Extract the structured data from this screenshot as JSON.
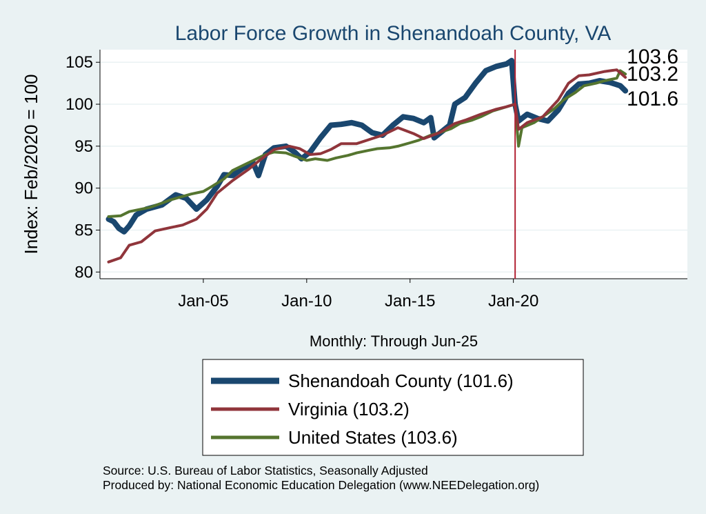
{
  "chart_data": {
    "type": "line",
    "title": "Labor Force Growth in Shenandoah  County, VA",
    "ylabel": "Index: Feb/2020 = 100",
    "xlabel": "Monthly: Through Jun-25",
    "ylim": [
      79.2,
      106.5
    ],
    "xlim": [
      "2000-01",
      "2028-06"
    ],
    "y_ticks": [
      80,
      85,
      90,
      95,
      100,
      105
    ],
    "x_ticks": [
      {
        "date": "2005-01",
        "label": "Jan-05"
      },
      {
        "date": "2010-01",
        "label": "Jan-10"
      },
      {
        "date": "2015-01",
        "label": "Jan-15"
      },
      {
        "date": "2020-01",
        "label": "Jan-20"
      }
    ],
    "reference_line": {
      "date": "2020-02",
      "color": "#b22234"
    },
    "grid": "horizontal",
    "legend_position": "bottom",
    "series": [
      {
        "name": "Shenandoah  County (101.6)",
        "end_label": "101.6",
        "color": "#1a476f",
        "points": [
          [
            "2000-06",
            86.3
          ],
          [
            "2000-09",
            86.0
          ],
          [
            "2000-12",
            85.2
          ],
          [
            "2001-03",
            84.8
          ],
          [
            "2001-06",
            85.5
          ],
          [
            "2001-10",
            86.8
          ],
          [
            "2002-04",
            87.5
          ],
          [
            "2003-01",
            88.0
          ],
          [
            "2003-09",
            89.2
          ],
          [
            "2004-03",
            88.8
          ],
          [
            "2004-09",
            87.5
          ],
          [
            "2005-03",
            88.6
          ],
          [
            "2005-09",
            90.2
          ],
          [
            "2006-01",
            91.6
          ],
          [
            "2006-06",
            91.5
          ],
          [
            "2006-12",
            92.4
          ],
          [
            "2007-06",
            93.0
          ],
          [
            "2007-09",
            91.5
          ],
          [
            "2008-01",
            94.0
          ],
          [
            "2008-06",
            94.8
          ],
          [
            "2009-01",
            95.0
          ],
          [
            "2009-06",
            94.3
          ],
          [
            "2009-10",
            93.5
          ],
          [
            "2010-03",
            94.3
          ],
          [
            "2010-09",
            96.0
          ],
          [
            "2011-03",
            97.5
          ],
          [
            "2011-09",
            97.6
          ],
          [
            "2012-03",
            97.8
          ],
          [
            "2012-09",
            97.5
          ],
          [
            "2013-03",
            96.6
          ],
          [
            "2013-09",
            96.3
          ],
          [
            "2014-03",
            97.5
          ],
          [
            "2014-09",
            98.5
          ],
          [
            "2015-03",
            98.3
          ],
          [
            "2015-09",
            97.8
          ],
          [
            "2016-01",
            98.4
          ],
          [
            "2016-03",
            96.0
          ],
          [
            "2016-06",
            96.5
          ],
          [
            "2016-12",
            97.5
          ],
          [
            "2017-03",
            100.0
          ],
          [
            "2017-09",
            100.8
          ],
          [
            "2018-03",
            102.5
          ],
          [
            "2018-09",
            104.0
          ],
          [
            "2019-03",
            104.5
          ],
          [
            "2019-09",
            104.8
          ],
          [
            "2019-12",
            105.2
          ],
          [
            "2020-02",
            100.0
          ],
          [
            "2020-04",
            98.0
          ],
          [
            "2020-09",
            98.8
          ],
          [
            "2021-03",
            98.3
          ],
          [
            "2021-09",
            98.0
          ],
          [
            "2022-03",
            99.3
          ],
          [
            "2022-09",
            101.3
          ],
          [
            "2023-03",
            102.4
          ],
          [
            "2023-09",
            102.5
          ],
          [
            "2024-03",
            102.8
          ],
          [
            "2024-09",
            102.6
          ],
          [
            "2025-03",
            102.2
          ],
          [
            "2025-06",
            101.6
          ]
        ]
      },
      {
        "name": "Virginia (103.2)",
        "end_label": "103.2",
        "color": "#90353b",
        "points": [
          [
            "2000-06",
            81.2
          ],
          [
            "2001-01",
            81.7
          ],
          [
            "2001-06",
            83.2
          ],
          [
            "2002-01",
            83.6
          ],
          [
            "2002-09",
            84.9
          ],
          [
            "2003-06",
            85.3
          ],
          [
            "2004-01",
            85.6
          ],
          [
            "2004-09",
            86.3
          ],
          [
            "2005-03",
            87.5
          ],
          [
            "2005-09",
            89.4
          ],
          [
            "2006-06",
            90.9
          ],
          [
            "2007-03",
            92.2
          ],
          [
            "2007-09",
            93.2
          ],
          [
            "2008-06",
            94.6
          ],
          [
            "2009-03",
            95.0
          ],
          [
            "2009-09",
            94.7
          ],
          [
            "2010-03",
            94.0
          ],
          [
            "2010-09",
            94.1
          ],
          [
            "2011-03",
            94.6
          ],
          [
            "2011-09",
            95.3
          ],
          [
            "2012-06",
            95.3
          ],
          [
            "2013-03",
            95.9
          ],
          [
            "2013-09",
            96.3
          ],
          [
            "2014-06",
            97.2
          ],
          [
            "2015-03",
            96.5
          ],
          [
            "2015-09",
            95.9
          ],
          [
            "2016-06",
            96.6
          ],
          [
            "2017-03",
            97.7
          ],
          [
            "2017-09",
            98.1
          ],
          [
            "2018-06",
            98.8
          ],
          [
            "2019-03",
            99.4
          ],
          [
            "2019-09",
            99.7
          ],
          [
            "2020-02",
            100.0
          ],
          [
            "2020-04",
            97.0
          ],
          [
            "2020-09",
            97.8
          ],
          [
            "2021-06",
            98.5
          ],
          [
            "2022-03",
            100.5
          ],
          [
            "2022-09",
            102.5
          ],
          [
            "2023-03",
            103.4
          ],
          [
            "2023-09",
            103.5
          ],
          [
            "2024-06",
            103.9
          ],
          [
            "2025-01",
            104.1
          ],
          [
            "2025-06",
            103.2
          ]
        ]
      },
      {
        "name": "United States (103.6)",
        "end_label": "103.6",
        "color": "#55752f",
        "points": [
          [
            "2000-06",
            86.6
          ],
          [
            "2001-01",
            86.7
          ],
          [
            "2001-06",
            87.2
          ],
          [
            "2002-06",
            87.7
          ],
          [
            "2003-06",
            88.6
          ],
          [
            "2004-06",
            89.3
          ],
          [
            "2005-01",
            89.6
          ],
          [
            "2005-06",
            90.2
          ],
          [
            "2006-01",
            91.1
          ],
          [
            "2006-06",
            92.1
          ],
          [
            "2007-01",
            92.8
          ],
          [
            "2007-06",
            93.3
          ],
          [
            "2008-01",
            94.0
          ],
          [
            "2008-06",
            94.3
          ],
          [
            "2009-01",
            94.2
          ],
          [
            "2009-06",
            93.8
          ],
          [
            "2010-01",
            93.3
          ],
          [
            "2010-06",
            93.5
          ],
          [
            "2011-01",
            93.3
          ],
          [
            "2011-06",
            93.6
          ],
          [
            "2012-01",
            93.9
          ],
          [
            "2012-06",
            94.2
          ],
          [
            "2013-01",
            94.5
          ],
          [
            "2013-06",
            94.7
          ],
          [
            "2014-01",
            94.8
          ],
          [
            "2014-06",
            95.0
          ],
          [
            "2015-01",
            95.4
          ],
          [
            "2015-06",
            95.7
          ],
          [
            "2016-01",
            96.3
          ],
          [
            "2016-06",
            96.6
          ],
          [
            "2017-01",
            97.1
          ],
          [
            "2017-06",
            97.7
          ],
          [
            "2018-01",
            98.1
          ],
          [
            "2018-06",
            98.5
          ],
          [
            "2019-01",
            99.2
          ],
          [
            "2019-06",
            99.5
          ],
          [
            "2020-02",
            100.0
          ],
          [
            "2020-04",
            95.0
          ],
          [
            "2020-06",
            97.2
          ],
          [
            "2021-01",
            97.8
          ],
          [
            "2021-06",
            98.5
          ],
          [
            "2022-01",
            99.5
          ],
          [
            "2022-06",
            100.5
          ],
          [
            "2023-01",
            101.4
          ],
          [
            "2023-06",
            102.2
          ],
          [
            "2024-01",
            102.5
          ],
          [
            "2024-06",
            102.8
          ],
          [
            "2025-01",
            103.1
          ],
          [
            "2025-03",
            104.0
          ],
          [
            "2025-06",
            103.6
          ]
        ]
      }
    ]
  },
  "source_lines": [
    "Source: U.S. Bureau of Labor Statistics, Seasonally Adjusted",
    "Produced by: National Economic Education Delegation (www.NEEDelegation.org)"
  ]
}
